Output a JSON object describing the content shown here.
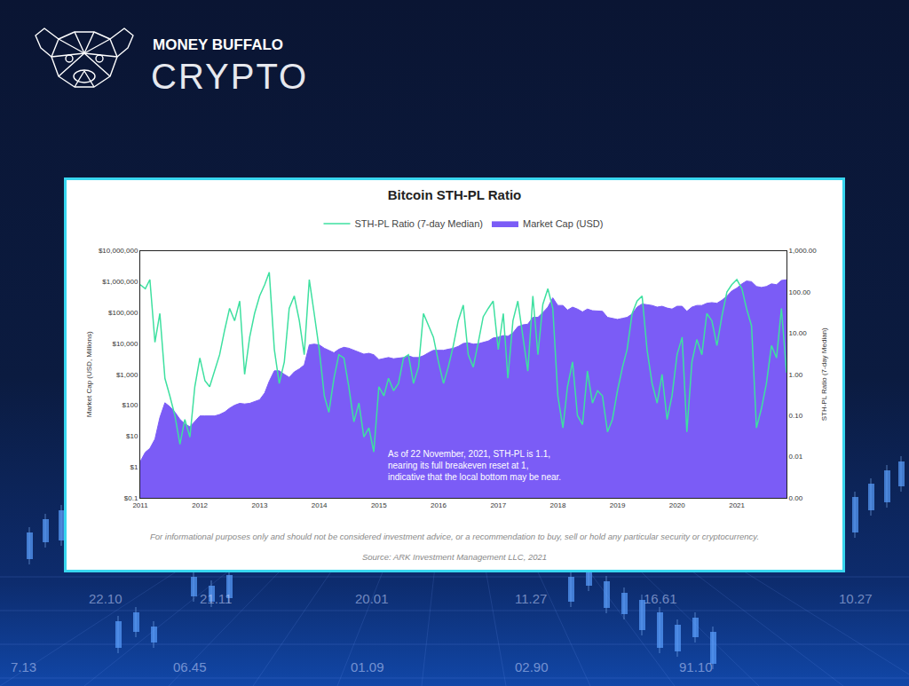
{
  "header": {
    "brand": "MONEY BUFFALO",
    "product": "CRYPTO"
  },
  "chart_data": {
    "type": "line",
    "title": "Bitcoin STH-PL Ratio",
    "ylabel": "Market Cap (USD, Millions)",
    "y2label": "STH-PL Ratio (7-day Median)",
    "log": "y",
    "grid": false,
    "legend": "top",
    "x": [
      "2011-01",
      "2011-02",
      "2011-03",
      "2011-04",
      "2011-05",
      "2011-06",
      "2011-07",
      "2011-08",
      "2011-09",
      "2011-10",
      "2011-11",
      "2011-12",
      "2012-01",
      "2012-02",
      "2012-03",
      "2012-04",
      "2012-05",
      "2012-06",
      "2012-07",
      "2012-08",
      "2012-09",
      "2012-10",
      "2012-11",
      "2012-12",
      "2013-01",
      "2013-02",
      "2013-03",
      "2013-04",
      "2013-05",
      "2013-06",
      "2013-07",
      "2013-08",
      "2013-09",
      "2013-10",
      "2013-11",
      "2013-12",
      "2014-01",
      "2014-02",
      "2014-03",
      "2014-04",
      "2014-05",
      "2014-06",
      "2014-07",
      "2014-08",
      "2014-09",
      "2014-10",
      "2014-11",
      "2014-12",
      "2015-01",
      "2015-02",
      "2015-03",
      "2015-04",
      "2015-05",
      "2015-06",
      "2015-07",
      "2015-08",
      "2015-09",
      "2015-10",
      "2015-11",
      "2015-12",
      "2016-01",
      "2016-02",
      "2016-03",
      "2016-04",
      "2016-05",
      "2016-06",
      "2016-07",
      "2016-08",
      "2016-09",
      "2016-10",
      "2016-11",
      "2016-12",
      "2017-01",
      "2017-02",
      "2017-03",
      "2017-04",
      "2017-05",
      "2017-06",
      "2017-07",
      "2017-08",
      "2017-09",
      "2017-10",
      "2017-11",
      "2017-12",
      "2018-01",
      "2018-02",
      "2018-03",
      "2018-04",
      "2018-05",
      "2018-06",
      "2018-07",
      "2018-08",
      "2018-09",
      "2018-10",
      "2018-11",
      "2018-12",
      "2019-01",
      "2019-02",
      "2019-03",
      "2019-04",
      "2019-05",
      "2019-06",
      "2019-07",
      "2019-08",
      "2019-09",
      "2019-10",
      "2019-11",
      "2019-12",
      "2020-01",
      "2020-02",
      "2020-03",
      "2020-04",
      "2020-05",
      "2020-06",
      "2020-07",
      "2020-08",
      "2020-09",
      "2020-10",
      "2020-11",
      "2020-12",
      "2021-01",
      "2021-02",
      "2021-03",
      "2021-04",
      "2021-05",
      "2021-06",
      "2021-07",
      "2021-08",
      "2021-09",
      "2021-10",
      "2021-11"
    ],
    "series": [
      {
        "name": "Market Cap (USD)",
        "color": "#7b5cf6",
        "type": "area",
        "values": [
          1.5,
          3,
          4,
          8,
          40,
          120,
          90,
          60,
          35,
          25,
          20,
          30,
          45,
          45,
          45,
          45,
          50,
          60,
          80,
          100,
          115,
          110,
          115,
          130,
          150,
          250,
          600,
          1300,
          1300,
          1000,
          800,
          1200,
          1500,
          2000,
          9000,
          9500,
          9000,
          7000,
          6000,
          5000,
          6500,
          7500,
          7000,
          6000,
          5000,
          4500,
          4800,
          4300,
          3000,
          3200,
          3500,
          3200,
          3300,
          3500,
          4000,
          3500,
          3500,
          4000,
          5000,
          6000,
          6000,
          6000,
          6500,
          7000,
          8000,
          10000,
          10500,
          9500,
          9800,
          11000,
          12000,
          15000,
          16000,
          18000,
          17000,
          22000,
          35000,
          40000,
          42000,
          70000,
          70000,
          100000,
          150000,
          300000,
          170000,
          170000,
          120000,
          150000,
          130000,
          105000,
          130000,
          115000,
          115000,
          110000,
          70000,
          65000,
          60000,
          65000,
          70000,
          90000,
          150000,
          190000,
          180000,
          170000,
          150000,
          160000,
          140000,
          130000,
          160000,
          160000,
          110000,
          150000,
          170000,
          170000,
          200000,
          210000,
          200000,
          250000,
          340000,
          500000,
          620000,
          850000,
          1050000,
          1000000,
          700000,
          650000,
          700000,
          850000,
          800000,
          1100000,
          1150000
        ]
      },
      {
        "name": "STH-PL Ratio (7-day Median)",
        "color": "#3ee0a0",
        "type": "line",
        "axis": "y2",
        "values": [
          150,
          120,
          200,
          6,
          30,
          0.8,
          0.3,
          0.1,
          0.02,
          0.08,
          0.03,
          0.5,
          2.5,
          0.7,
          0.5,
          1.2,
          3,
          12,
          40,
          20,
          60,
          1,
          8,
          30,
          80,
          150,
          300,
          4,
          0.6,
          2,
          40,
          80,
          20,
          3,
          200,
          30,
          4,
          0.3,
          0.12,
          0.8,
          3,
          2.5,
          0.5,
          0.07,
          0.2,
          0.03,
          0.05,
          0.013,
          0.5,
          0.3,
          0.8,
          0.4,
          0.6,
          2.5,
          3,
          0.6,
          1.5,
          30,
          15,
          8,
          2,
          0.6,
          1.5,
          5,
          20,
          48,
          3,
          1.5,
          6,
          25,
          40,
          60,
          4,
          30,
          0.8,
          20,
          60,
          8,
          1.2,
          80,
          3,
          50,
          120,
          40,
          0.3,
          0.05,
          0.5,
          2,
          0.1,
          0.06,
          1.2,
          0.2,
          0.4,
          0.3,
          0.04,
          0.08,
          0.4,
          1.5,
          4,
          30,
          60,
          80,
          4,
          0.6,
          0.2,
          1,
          0.08,
          0.3,
          3,
          8,
          0.04,
          2,
          7,
          3,
          30,
          20,
          5,
          25,
          100,
          150,
          200,
          120,
          40,
          15,
          0.05,
          0.15,
          0.6,
          5,
          2.5,
          40,
          1.1
        ]
      }
    ],
    "xlim": [
      "2011-01",
      "2021-11"
    ],
    "xticks": [
      "2011",
      "2012",
      "2013",
      "2014",
      "2015",
      "2016",
      "2017",
      "2018",
      "2019",
      "2020",
      "2021"
    ],
    "ylim": [
      0.1,
      10000000
    ],
    "yticks": [
      {
        "value": 0.1,
        "label": "$0.1"
      },
      {
        "value": 1,
        "label": "$1"
      },
      {
        "value": 10,
        "label": "$10"
      },
      {
        "value": 100,
        "label": "$100"
      },
      {
        "value": 1000,
        "label": "$1,000"
      },
      {
        "value": 10000,
        "label": "$10,000"
      },
      {
        "value": 100000,
        "label": "$100,000"
      },
      {
        "value": 1000000,
        "label": "$1,000,000"
      },
      {
        "value": 10000000,
        "label": "$10,000,000"
      }
    ],
    "y2lim": [
      0.001,
      1000
    ],
    "y2ticks": [
      {
        "value": 0.001,
        "label": "0.00"
      },
      {
        "value": 0.01,
        "label": "0.01"
      },
      {
        "value": 0.1,
        "label": "0.10"
      },
      {
        "value": 1,
        "label": "1.00"
      },
      {
        "value": 10,
        "label": "10.00"
      },
      {
        "value": 100,
        "label": "100.00"
      },
      {
        "value": 1000,
        "label": "1,000.00"
      }
    ],
    "reference_line": 1,
    "annotation": [
      "As of 22 November, 2021, STH-PL is 1.1,",
      "nearing its full breakeven reset at 1,",
      "indicative that the local bottom may be near."
    ]
  },
  "footer": {
    "disclaimer": "For informational purposes only and should not be considered investment advice, or a recommendation to buy, sell or hold any particular security or cryptocurrency.",
    "source": "Source: ARK Investment Management LLC, 2021"
  },
  "background_labels": [
    "22.10",
    "21.11",
    "20.01",
    "11.27",
    "16.61",
    "10.27",
    "7.13",
    "06.45",
    "01.09",
    "02.90",
    "91.10"
  ]
}
